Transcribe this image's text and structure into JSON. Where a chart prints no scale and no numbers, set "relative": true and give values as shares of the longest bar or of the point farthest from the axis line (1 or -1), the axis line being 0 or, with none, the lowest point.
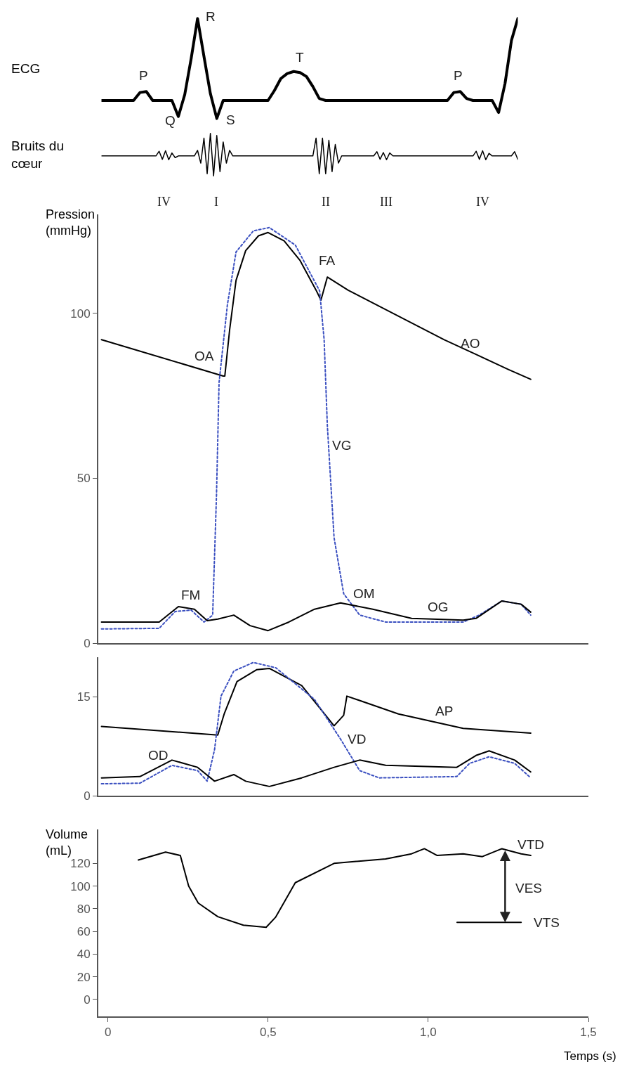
{
  "chart_data": [
    {
      "type": "line",
      "relative": true,
      "ylabel": "ECG",
      "tick_labels": false,
      "categories": [
        null,
        null,
        null,
        null,
        null,
        null,
        null,
        null,
        null,
        null,
        null,
        null,
        null,
        null,
        null,
        null,
        null,
        null,
        null,
        null,
        null,
        null,
        null,
        null,
        null,
        null,
        null,
        null,
        null,
        null,
        null,
        null,
        null,
        null,
        null,
        null,
        null,
        null,
        null,
        null,
        null,
        null,
        null,
        null,
        null,
        null,
        null,
        null,
        null,
        null,
        null,
        null,
        null,
        null,
        null,
        null,
        null,
        null,
        null,
        null,
        null,
        null,
        null,
        null,
        null,
        null
      ],
      "series": [
        {
          "color": "#000000",
          "line_style": "solid",
          "values": [
            0.18,
            0.18,
            0.18,
            0.18,
            0.18,
            0.18,
            0.26,
            0.27,
            0.18,
            0.18,
            0.18,
            0.18,
            0.02,
            0.24,
            0.6,
            1,
            0.62,
            0.25,
            0,
            0.18,
            0.18,
            0.18,
            0.18,
            0.18,
            0.18,
            0.18,
            0.18,
            0.28,
            0.4,
            0.45,
            0.47,
            0.46,
            0.42,
            0.32,
            0.2,
            0.18,
            0.18,
            0.18,
            0.18,
            0.18,
            0.18,
            0.18,
            0.18,
            0.18,
            0.18,
            0.18,
            0.18,
            0.18,
            0.18,
            0.18,
            0.18,
            0.18,
            0.18,
            0.18,
            0.18,
            0.26,
            0.27,
            0.2,
            0.18,
            0.18,
            0.18,
            0.18,
            0.06,
            0.35,
            0.78,
            1
          ]
        }
      ],
      "annotations": [
        "P",
        "R",
        "Q",
        "S",
        "T",
        "P"
      ]
    },
    {
      "type": "line",
      "relative": true,
      "ylabel": "Bruits du\ncœur",
      "tick_labels": false,
      "categories": [
        null,
        null,
        null,
        null,
        null,
        null,
        null,
        null,
        null,
        null,
        null,
        null,
        null,
        null,
        null,
        null,
        null,
        null,
        null,
        null,
        null,
        null,
        null,
        null,
        null,
        null,
        null,
        null,
        null,
        null,
        null,
        null,
        null,
        null,
        null,
        null,
        null,
        null,
        null,
        null,
        null,
        null,
        null,
        null,
        null,
        null,
        null,
        null,
        null,
        null,
        null,
        null,
        null,
        null,
        null,
        null,
        null,
        null,
        null,
        null,
        null,
        null,
        null,
        null,
        null,
        null,
        null,
        null,
        null,
        null,
        null,
        null,
        null,
        null,
        null,
        null,
        null,
        null,
        null,
        null,
        null,
        null,
        null,
        null,
        null,
        null,
        null,
        null,
        null,
        null,
        null,
        null,
        null,
        null,
        null,
        null,
        null,
        null,
        null,
        null,
        null,
        null,
        null,
        null,
        null,
        null,
        null,
        null,
        null,
        null,
        null,
        null,
        null,
        null,
        null,
        null,
        null,
        null,
        null,
        null,
        null,
        null,
        null,
        null,
        null,
        null,
        null,
        null,
        null,
        null,
        null
      ],
      "series": [
        {
          "color": "#000000",
          "line_style": "solid",
          "values": [
            0.47,
            0.47,
            0.47,
            0.47,
            0.47,
            0.47,
            0.47,
            0.47,
            0.47,
            0.47,
            0.47,
            0.47,
            0.47,
            0.47,
            0.47,
            0.47,
            0.47,
            0.47,
            0.58,
            0.39,
            0.59,
            0.38,
            0.54,
            0.43,
            0.47,
            0.47,
            0.47,
            0.47,
            0.47,
            0.47,
            0.6,
            0.3,
            0.89,
            0.05,
            1,
            0,
            0.95,
            0.1,
            0.8,
            0.3,
            0.6,
            0.47,
            0.47,
            0.47,
            0.47,
            0.47,
            0.47,
            0.47,
            0.47,
            0.47,
            0.47,
            0.47,
            0.47,
            0.47,
            0.47,
            0.47,
            0.47,
            0.47,
            0.47,
            0.47,
            0.47,
            0.47,
            0.47,
            0.47,
            0.47,
            0.47,
            0.47,
            0.89,
            0.05,
            0.89,
            0.05,
            0.84,
            0.1,
            0.74,
            0.3,
            0.47,
            0.47,
            0.47,
            0.47,
            0.47,
            0.47,
            0.47,
            0.47,
            0.47,
            0.47,
            0.47,
            0.57,
            0.39,
            0.55,
            0.38,
            0.54,
            0.47,
            0.47,
            0.47,
            0.47,
            0.47,
            0.47,
            0.47,
            0.47,
            0.47,
            0.47,
            0.47,
            0.47,
            0.47,
            0.47,
            0.47,
            0.47,
            0.47,
            0.47,
            0.47,
            0.47,
            0.47,
            0.47,
            0.47,
            0.47,
            0.47,
            0.47,
            0.58,
            0.39,
            0.59,
            0.38,
            0.53,
            0.47,
            0.47,
            0.47,
            0.47,
            0.47,
            0.47,
            0.47,
            0.57,
            0.39
          ]
        }
      ],
      "annotations": [
        "IV",
        "I",
        "II",
        "III",
        "IV"
      ]
    },
    {
      "type": "line",
      "ylabel": "Pression\n(mmHg)",
      "xlim": [
        -0.03,
        1.5
      ],
      "ylim": [
        0,
        130
      ],
      "yticks": [
        0,
        50,
        100
      ],
      "tick_labels": "y",
      "series": [
        {
          "color": "#000000",
          "line_style": "solid",
          "x": [
            -0.02,
            0.36,
            0.365,
            0.38,
            0.4,
            0.43,
            0.47,
            0.5,
            0.55,
            0.6,
            0.65,
            0.665,
            0.685,
            0.75,
            0.85,
            0.95,
            1.05,
            1.15,
            1.25,
            1.32
          ],
          "values": [
            92,
            81,
            81,
            95,
            110,
            119,
            123.5,
            124.5,
            122,
            116,
            107,
            104,
            111,
            107,
            102,
            97,
            92,
            87.5,
            83,
            80
          ]
        },
        {
          "color": "#3a4fc0",
          "line_style": "dotted",
          "x": [
            -0.02,
            0.16,
            0.21,
            0.26,
            0.3,
            0.327,
            0.339,
            0.347,
            0.373,
            0.4,
            0.454,
            0.504,
            0.585,
            0.661,
            0.675,
            0.685,
            0.706,
            0.736,
            0.786,
            0.867,
            1.109,
            1.159,
            1.23,
            1.29,
            1.32
          ],
          "values": [
            4.3,
            4.5,
            9.6,
            10,
            6.4,
            8.5,
            45,
            79,
            102.6,
            118.6,
            125,
            126,
            120.7,
            106.8,
            92,
            66,
            32,
            15,
            8.5,
            6.4,
            6.4,
            8.5,
            12.8,
            11.8,
            8.5
          ]
        },
        {
          "color": "#000000",
          "line_style": "solid",
          "x": [
            -0.02,
            0.16,
            0.22,
            0.27,
            0.31,
            0.343,
            0.393,
            0.444,
            0.5,
            0.565,
            0.645,
            0.726,
            0.827,
            0.948,
            1.109,
            1.149,
            1.23,
            1.29,
            1.32
          ],
          "values": [
            6.4,
            6.4,
            11.1,
            10.3,
            6.8,
            7.3,
            8.5,
            5.3,
            3.8,
            6.4,
            10.3,
            12.2,
            10.3,
            7.5,
            7,
            7.5,
            12.8,
            11.8,
            9.4
          ]
        }
      ],
      "annotations": [
        "AO",
        "FA",
        "OA",
        "VG",
        "FM",
        "OM",
        "OG"
      ]
    },
    {
      "type": "line",
      "xlim": [
        -0.03,
        1.5
      ],
      "ylim": [
        0,
        21
      ],
      "yticks": [
        0,
        15
      ],
      "tick_labels": "y",
      "series": [
        {
          "color": "#000000",
          "line_style": "solid",
          "x": [
            -0.02,
            0.343,
            0.363,
            0.403,
            0.464,
            0.504,
            0.605,
            0.706,
            0.736,
            0.746,
            0.907,
            1.109,
            1.32
          ],
          "values": [
            10.5,
            9.2,
            12.4,
            17.3,
            19.1,
            19.3,
            16.7,
            10.6,
            12.2,
            15.1,
            12.4,
            10.2,
            9.5
          ]
        },
        {
          "color": "#3a4fc0",
          "line_style": "dotted",
          "x": [
            -0.02,
            0.1,
            0.2,
            0.28,
            0.31,
            0.333,
            0.353,
            0.393,
            0.454,
            0.524,
            0.645,
            0.726,
            0.786,
            0.847,
            1.089,
            1.129,
            1.19,
            1.27,
            1.32
          ],
          "values": [
            1.8,
            1.9,
            4.6,
            3.8,
            2.2,
            7,
            15.1,
            18.9,
            20.2,
            19.4,
            14.6,
            8.6,
            3.8,
            2.7,
            2.9,
            4.9,
            5.9,
            4.9,
            2.7
          ]
        },
        {
          "color": "#000000",
          "line_style": "solid",
          "x": [
            -0.02,
            0.1,
            0.2,
            0.28,
            0.333,
            0.393,
            0.43,
            0.504,
            0.605,
            0.706,
            0.786,
            0.867,
            1.089,
            1.149,
            1.19,
            1.27,
            1.32
          ],
          "values": [
            2.7,
            2.9,
            5.4,
            4.3,
            2.2,
            3.2,
            2.2,
            1.4,
            2.7,
            4.3,
            5.4,
            4.6,
            4.3,
            6.1,
            6.8,
            5.4,
            3.6
          ]
        }
      ],
      "annotations": [
        "AP",
        "VD",
        "OD"
      ]
    },
    {
      "type": "line",
      "ylabel": "Volume\n(mL)",
      "xlabel": "Temps (s)",
      "xlim": [
        -0.03,
        1.5
      ],
      "ylim": [
        -15,
        150
      ],
      "yticks": [
        0,
        20,
        40,
        60,
        80,
        100,
        120
      ],
      "xticks": [
        0,
        {
          "value": 0.5,
          "label": "0,5"
        },
        {
          "value": 1.0,
          "label": "1,0"
        },
        {
          "value": 1.5,
          "label": "1,5"
        }
      ],
      "series": [
        {
          "color": "#000000",
          "line_style": "solid",
          "x": [
            0.095,
            0.18,
            0.226,
            0.252,
            0.282,
            0.343,
            0.423,
            0.494,
            0.524,
            0.585,
            0.706,
            0.867,
            0.948,
            0.988,
            1.028,
            1.109,
            1.169,
            1.23,
            1.29,
            1.32
          ],
          "values": [
            123,
            130,
            127,
            100,
            85,
            73,
            65.5,
            63.6,
            72.7,
            103,
            120,
            124,
            128.5,
            133,
            127,
            128.5,
            126,
            133,
            128.5,
            127
          ]
        },
        {
          "color": "#000000",
          "line_style": "solid",
          "x": [
            1.09,
            1.29
          ],
          "values": [
            68,
            68
          ]
        }
      ],
      "annotations": [
        "VTD",
        {
          "text": "VES",
          "x": 1.24,
          "y": 68
        },
        "VTS"
      ]
    }
  ]
}
